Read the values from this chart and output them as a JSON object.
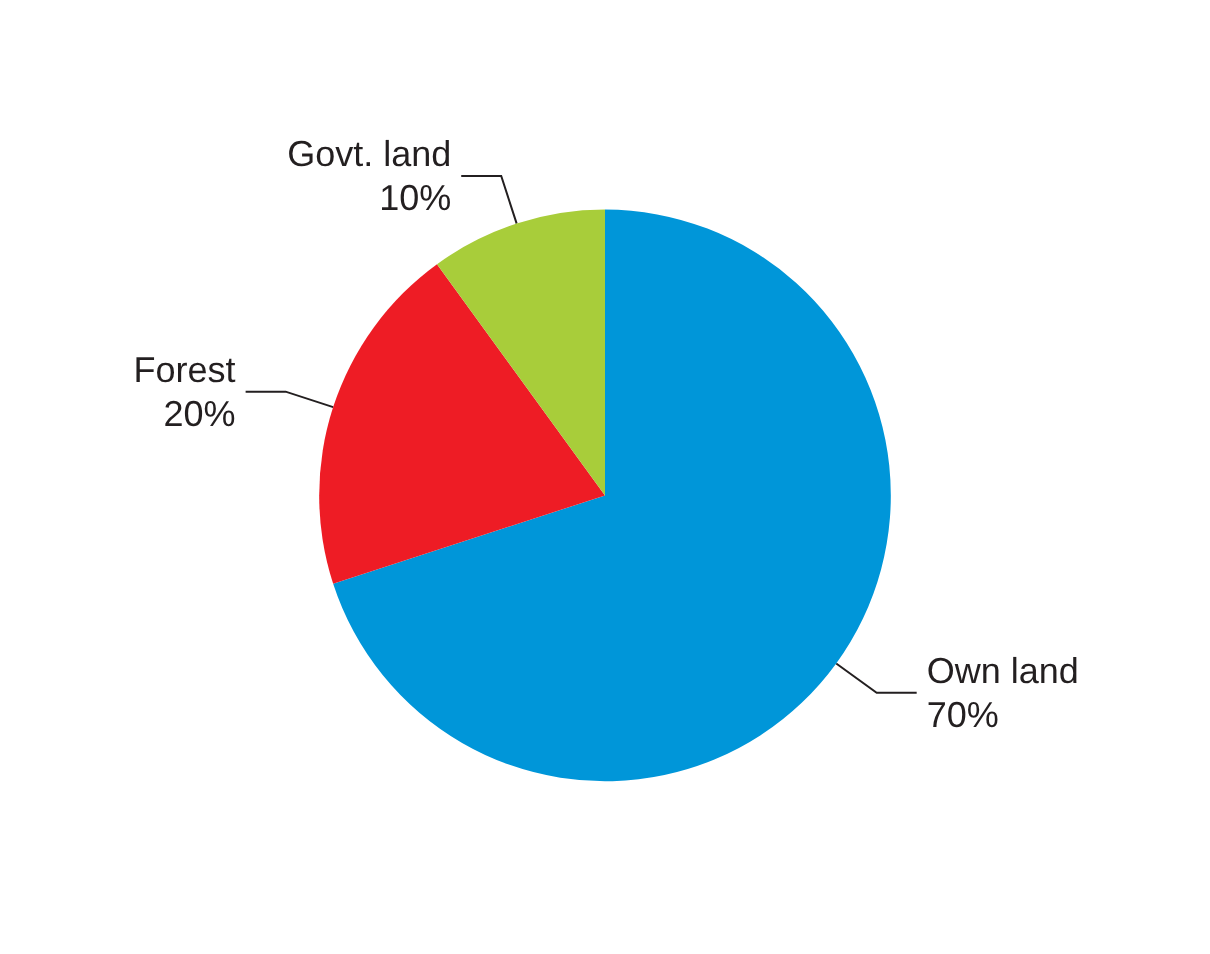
{
  "chart_data": {
    "type": "pie",
    "categories": [
      "Own land",
      "Forest",
      "Govt. land"
    ],
    "values": [
      70,
      20,
      10
    ],
    "colors": [
      "#0096d9",
      "#ee1c25",
      "#a8cd3a"
    ],
    "value_labels": [
      "70%",
      "20%",
      "10%"
    ]
  }
}
